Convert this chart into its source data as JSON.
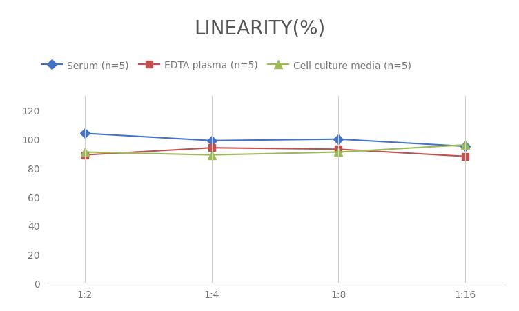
{
  "title": "LINEARITY(%)",
  "title_fontsize": 20,
  "title_fontweight": "normal",
  "title_color": "#555555",
  "x_labels": [
    "1:2",
    "1:4",
    "1:8",
    "1:16"
  ],
  "x_positions": [
    0,
    1,
    2,
    3
  ],
  "series": [
    {
      "label": "Serum (n=5)",
      "values": [
        104,
        99,
        100,
        95
      ],
      "color": "#4472C4",
      "marker": "D",
      "markersize": 7,
      "linewidth": 1.5
    },
    {
      "label": "EDTA plasma (n=5)",
      "values": [
        89,
        94,
        93,
        88
      ],
      "color": "#C0504D",
      "marker": "s",
      "markersize": 7,
      "linewidth": 1.5
    },
    {
      "label": "Cell culture media (n=5)",
      "values": [
        91,
        89,
        91,
        96
      ],
      "color": "#9BBB59",
      "marker": "^",
      "markersize": 8,
      "linewidth": 1.5
    }
  ],
  "ylim": [
    0,
    130
  ],
  "yticks": [
    0,
    20,
    40,
    60,
    80,
    100,
    120
  ],
  "grid_color": "#D0D0D0",
  "grid_linewidth": 0.8,
  "background_color": "#FFFFFF",
  "legend_fontsize": 10,
  "tick_fontsize": 10,
  "tick_color": "#777777"
}
